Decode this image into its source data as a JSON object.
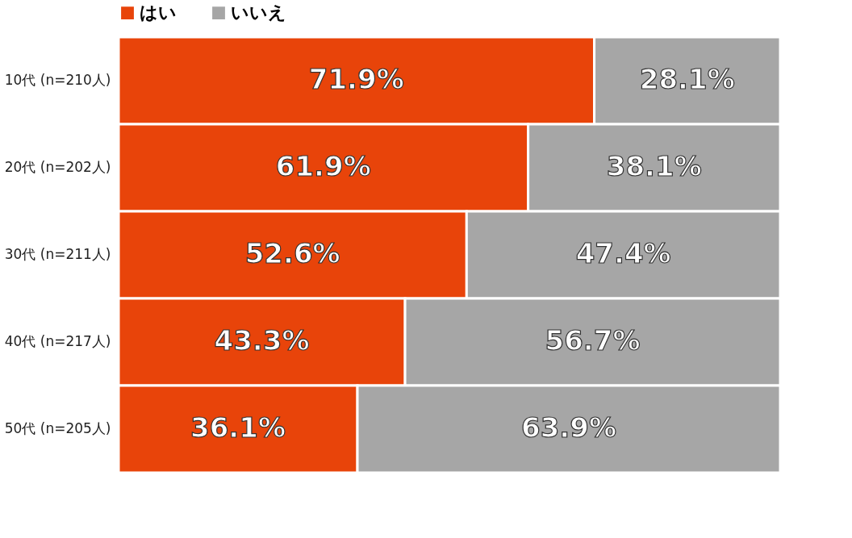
{
  "chart_data": {
    "type": "bar",
    "orientation": "horizontal",
    "stacked": true,
    "categories": [
      "10代 (n=210人)",
      "20代 (n=202人)",
      "30代 (n=211人)",
      "40代 (n=217人)",
      "50代 (n=205人)"
    ],
    "series": [
      {
        "name": "はい",
        "color": "#e8440a",
        "values": [
          71.9,
          61.9,
          52.6,
          43.3,
          36.1
        ],
        "value_labels": [
          "71.9%",
          "61.9%",
          "52.6%",
          "43.3%",
          "36.1%"
        ]
      },
      {
        "name": "いいえ",
        "color": "#a6a6a6",
        "values": [
          28.1,
          38.1,
          47.4,
          56.7,
          63.9
        ],
        "value_labels": [
          "28.1%",
          "38.1%",
          "47.4%",
          "56.7%",
          "63.9%"
        ]
      }
    ],
    "tick_labels": "y",
    "legend": "top"
  }
}
